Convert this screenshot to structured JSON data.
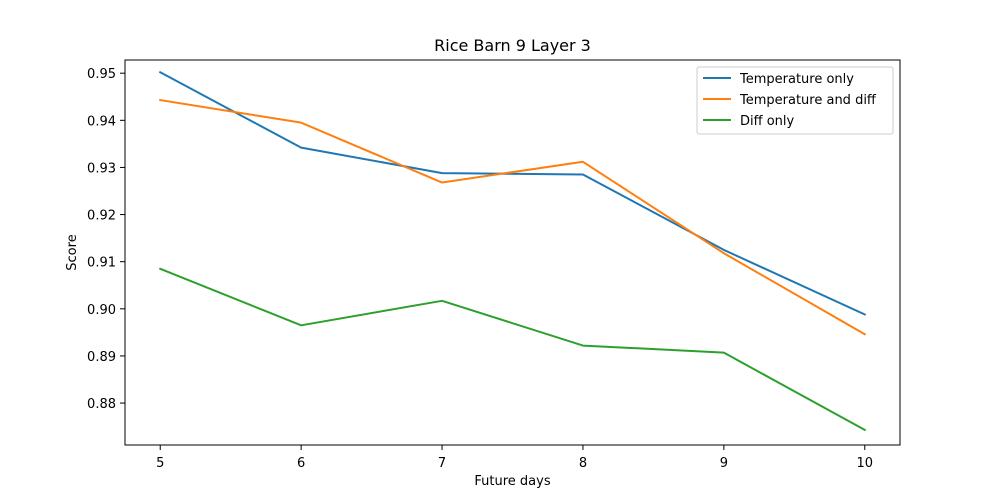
{
  "chart_data": {
    "type": "line",
    "title": "Rice Barn 9 Layer 3",
    "xlabel": "Future days",
    "ylabel": "Score",
    "x": [
      5,
      6,
      7,
      8,
      9,
      10
    ],
    "xticks": [
      "5",
      "6",
      "7",
      "8",
      "9",
      "10"
    ],
    "yticks": [
      "0.88",
      "0.89",
      "0.90",
      "0.91",
      "0.92",
      "0.93",
      "0.94",
      "0.95"
    ],
    "xlim": [
      4.75,
      10.25
    ],
    "ylim": [
      0.8711,
      0.9528
    ],
    "grid": false,
    "legend_position": "top-right",
    "series": [
      {
        "name": "Temperature only",
        "color": "#1f77b4",
        "values": [
          0.9502,
          0.9342,
          0.9288,
          0.9285,
          0.9125,
          0.8988
        ]
      },
      {
        "name": "Temperature and diff",
        "color": "#ff7f0e",
        "values": [
          0.9443,
          0.9395,
          0.9268,
          0.9312,
          0.9118,
          0.8946
        ]
      },
      {
        "name": "Diff only",
        "color": "#2ca02c",
        "values": [
          0.9085,
          0.8965,
          0.9017,
          0.8922,
          0.8907,
          0.8743
        ]
      }
    ]
  }
}
